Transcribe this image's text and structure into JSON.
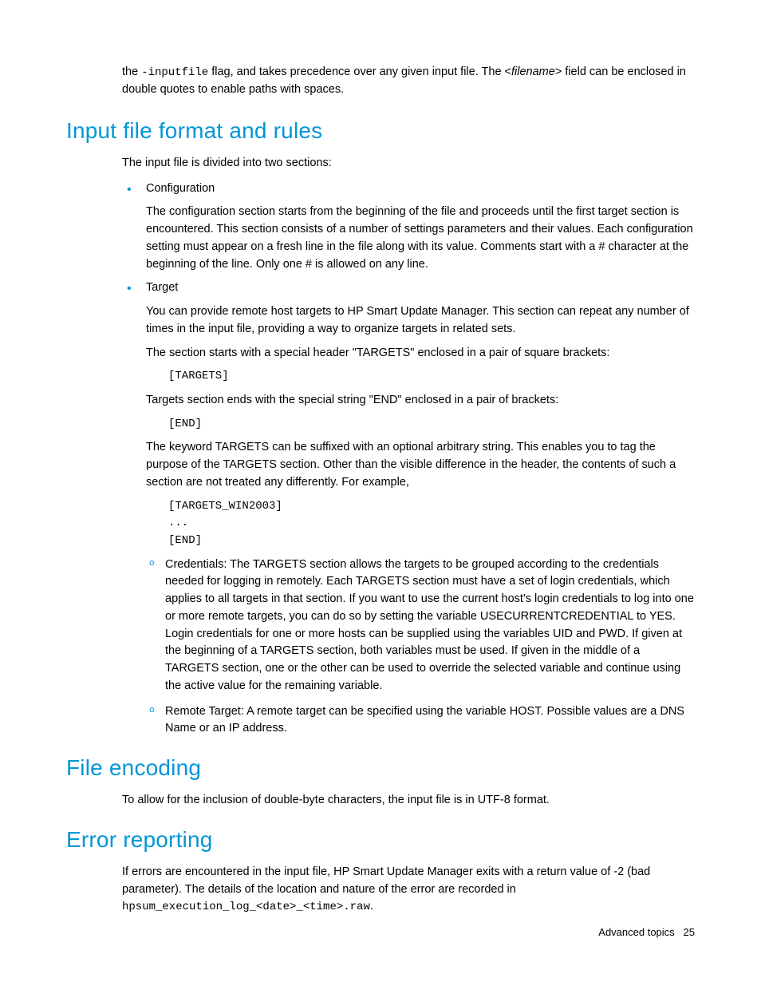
{
  "colors": {
    "heading": "#0096d6",
    "body_text": "#000000",
    "bullet": "#0096d6",
    "background": "#ffffff"
  },
  "typography": {
    "heading_fontsize": 28,
    "heading_weight": 300,
    "body_fontsize": 14.5,
    "code_font": "Courier New"
  },
  "intro": {
    "prefix": "the ",
    "flag_code": "-inputfile",
    "mid": " flag, and takes precedence over any given input file. The <",
    "filename_italic": "filename",
    "suffix": "> field can be enclosed in double quotes to enable paths with spaces."
  },
  "sections": {
    "input_rules": {
      "heading": "Input file format and rules",
      "lead": "The input file is divided into two sections:",
      "config": {
        "title": "Configuration",
        "para": "The configuration section starts from the beginning of the file and proceeds until the first target section is encountered. This section consists of a number of settings parameters and their values. Each configuration setting must appear on a fresh line in the file along with its value. Comments start with a # character at the beginning of the line. Only one # is allowed on any line."
      },
      "target": {
        "title": "Target",
        "para1": "You can provide remote host targets to HP Smart Update Manager. This section can repeat any number of times in the input file, providing a way to organize targets in related sets.",
        "para2": "The section starts with a special header \"TARGETS\" enclosed in a pair of square brackets:",
        "code1": "[TARGETS]",
        "para3": "Targets section ends with the special string \"END\" enclosed in a pair of brackets:",
        "code2": "[END]",
        "para4": "The keyword TARGETS can be suffixed with an optional arbitrary string. This enables you to tag the purpose of the TARGETS section. Other than the visible difference in the header, the contents of such a section are not treated any differently. For example,",
        "code3": "[TARGETS_WIN2003]\n...\n[END]",
        "sub": {
          "credentials": "Credentials: The TARGETS section allows the targets to be grouped according to the credentials needed for logging in remotely. Each TARGETS section must have a set of login credentials, which applies to all targets in that section. If you want to use the current host's login credentials to log into one or more remote targets, you can do so by setting the variable USECURRENTCREDENTIAL to YES. Login credentials for one or more hosts can be supplied using the variables UID and PWD. If given at the beginning of a TARGETS section, both variables must be used. If given in the middle of a TARGETS section, one or the other can be used to override the selected variable and continue using the active value for the remaining variable.",
          "remote": "Remote Target: A remote target can be specified using the variable HOST. Possible values are a DNS Name or an IP address."
        }
      }
    },
    "file_encoding": {
      "heading": "File encoding",
      "para": "To allow for the inclusion of double-byte characters, the input file is in UTF-8 format."
    },
    "error_reporting": {
      "heading": "Error reporting",
      "para": "If errors are encountered in the input file, HP Smart Update Manager exits with a return value of -2 (bad parameter). The details of the location and nature of the error are recorded in",
      "code": "hpsum_execution_log_<date>_<time>.raw",
      "suffix": "."
    }
  },
  "footer": {
    "label": "Advanced topics",
    "page": "25"
  }
}
